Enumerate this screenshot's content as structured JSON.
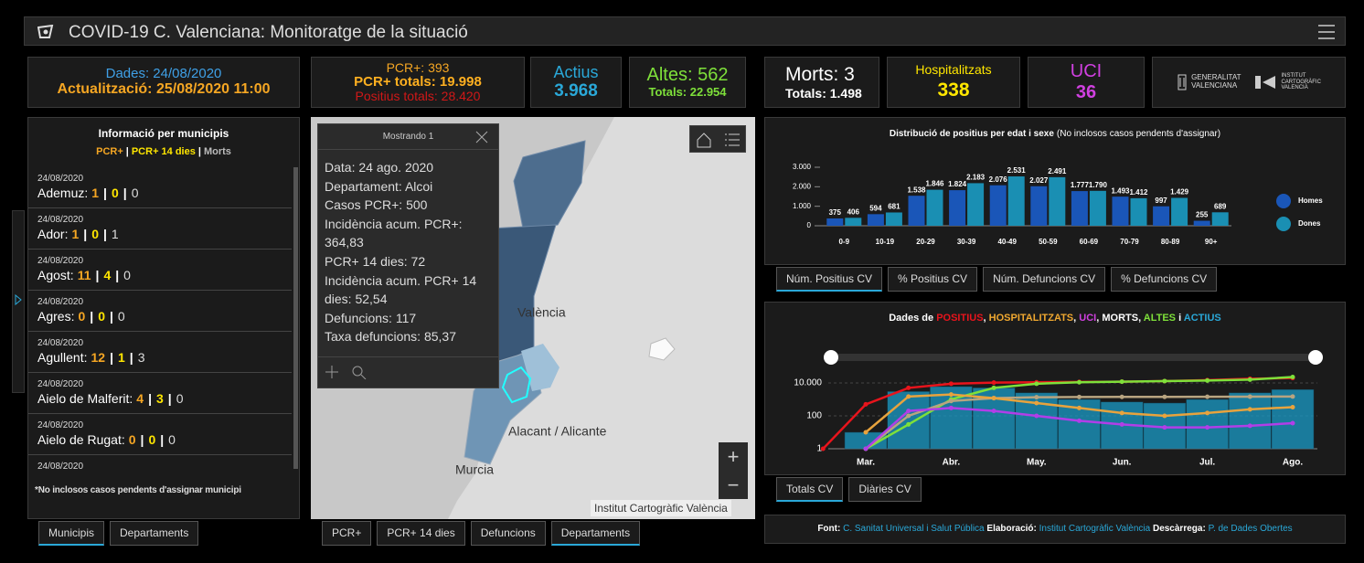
{
  "header": {
    "title": "COVID-19 C. Valenciana: Monitoratge de la situació"
  },
  "stats": {
    "dates": {
      "data": "Dades: 24/08/2020",
      "update": "Actualització: 25/08/2020 11:00"
    },
    "pcr": {
      "daily": "PCR+: 393",
      "total": "PCR+ totals: 19.998",
      "positives": "Positius totals: 28.420"
    },
    "active": {
      "label": "Actius",
      "value": "3.968"
    },
    "discharges": {
      "label": "Altes: 562",
      "total": "Totals: 22.954"
    },
    "deaths": {
      "label": "Morts: 3",
      "total": "Totals: 1.498"
    },
    "hospital": {
      "label": "Hospitalitzats",
      "value": "338"
    },
    "icu": {
      "label": "UCI",
      "value": "36"
    }
  },
  "logos": {
    "gva": [
      "GENERALITAT",
      "VALENCIANA"
    ],
    "icv": [
      "INSTITUT",
      "CARTOGRÀFIC",
      "VALENCIÀ"
    ]
  },
  "municipalities": {
    "title": "Informació per municipis",
    "legend": [
      "PCR+",
      "PCR+ 14 dies",
      "Morts"
    ],
    "separator": "|",
    "items": [
      {
        "date": "24/08/2020",
        "name": "Ademuz:",
        "pcr": 1,
        "pcr14": 0,
        "deaths": 0
      },
      {
        "date": "24/08/2020",
        "name": "Ador:",
        "pcr": 1,
        "pcr14": 0,
        "deaths": 1
      },
      {
        "date": "24/08/2020",
        "name": "Agost:",
        "pcr": 11,
        "pcr14": 4,
        "deaths": 0
      },
      {
        "date": "24/08/2020",
        "name": "Agres:",
        "pcr": 0,
        "pcr14": 0,
        "deaths": 0
      },
      {
        "date": "24/08/2020",
        "name": "Agullent:",
        "pcr": 12,
        "pcr14": 1,
        "deaths": 3
      },
      {
        "date": "24/08/2020",
        "name": "Aielo de Malferit:",
        "pcr": 4,
        "pcr14": 3,
        "deaths": 0
      },
      {
        "date": "24/08/2020",
        "name": "Aielo de Rugat:",
        "pcr": 0,
        "pcr14": 0,
        "deaths": 0
      }
    ],
    "last_date": "24/08/2020",
    "note": "*No inclosos casos pendents d'assignar municipi",
    "tabs": [
      "Municipis",
      "Departaments"
    ],
    "active_tab": 0
  },
  "map": {
    "popup_title": "Mostrando 1",
    "popup_lines": [
      "Data: 24 ago. 2020",
      "Departament: Alcoi",
      "Casos PCR+: 500",
      "Incidència acum. PCR+: 364,83",
      "PCR+ 14 dies: 72",
      "Incidència acum. PCR+ 14 dies: 52,54",
      "Defuncions: 117",
      "Taxa defuncions: 85,37"
    ],
    "labels": [
      "València",
      "Alacant / Alicante",
      "Murcia"
    ],
    "attribution": "Institut Cartogràfic València",
    "zoom": [
      "+",
      "−"
    ],
    "tabs": [
      "PCR+",
      "PCR+ 14 dies",
      "Defuncions",
      "Departaments"
    ],
    "active_tab": 3
  },
  "chart_data": [
    {
      "type": "bar",
      "title": "Distribució de positius per edat i sexe",
      "subtitle": "(No inclosos casos pendents d'assignar)",
      "categories": [
        "0-9",
        "10-19",
        "20-29",
        "30-39",
        "40-49",
        "50-59",
        "60-69",
        "70-79",
        "80-89",
        "90+"
      ],
      "series": [
        {
          "name": "Homes",
          "color": "#1a56b8",
          "values": [
            375,
            594,
            1538,
            1824,
            2076,
            2027,
            1777,
            1493,
            997,
            255
          ],
          "value_labels": [
            "375",
            "594",
            "1.538",
            "1.824",
            "2.076",
            "2.027",
            "1.777",
            "1.493",
            "997",
            "255"
          ]
        },
        {
          "name": "Dones",
          "color": "#1a8fb3",
          "values": [
            406,
            681,
            1846,
            2183,
            2531,
            2491,
            1790,
            1412,
            1429,
            689
          ],
          "value_labels": [
            "406",
            "681",
            "1.846",
            "2.183",
            "2.531",
            "2.491",
            "1.790",
            "1.412",
            "1.429",
            "689"
          ]
        }
      ],
      "ylim": [
        0,
        3000
      ],
      "yticks": [
        0,
        {
          "value": 1000,
          "label": "1.000"
        },
        {
          "value": 2000,
          "label": "2.000"
        },
        {
          "value": 3000,
          "label": "3.000"
        }
      ],
      "legend": "right",
      "tabs": [
        "Núm. Positius CV",
        "% Positius CV",
        "Núm. Defuncions CV",
        "% Defuncions CV"
      ],
      "active_tab": 0
    },
    {
      "type": "line",
      "title_parts": [
        "Dades de ",
        "POSITIUS",
        ", ",
        "HOSPITALITZATS",
        ", ",
        "UCI",
        ", MORTS, ",
        "ALTES",
        " i ",
        "ACTIUS"
      ],
      "title_colors": [
        "#ffffff",
        "#e8141c",
        "#ffffff",
        "#f0a830",
        "#ffffff",
        "#d040e0",
        "#ffffff",
        "#7ee03a",
        "#ffffff",
        "#2aa8d8"
      ],
      "categories": [
        null,
        "Mar.",
        null,
        "Abr.",
        null,
        "May.",
        null,
        "Jun.",
        null,
        "Jul.",
        null,
        "Ago."
      ],
      "series": [
        {
          "name": "ACTIUS",
          "style": "bar",
          "color": "#1a9bc7",
          "values": [
            null,
            10,
            3000,
            6000,
            5000,
            2500,
            1000,
            700,
            600,
            1000,
            2500,
            3968
          ]
        },
        {
          "name": "POSITIUS",
          "color": "#e8141c",
          "values": [
            1,
            500,
            5000,
            9000,
            10500,
            11000,
            11500,
            12000,
            13000,
            15000,
            18000,
            19998
          ]
        },
        {
          "name": "ALTES",
          "color": "#7ee03a",
          "values": [
            null,
            1,
            30,
            1000,
            5000,
            9000,
            11000,
            12000,
            13000,
            14000,
            16000,
            22954
          ]
        },
        {
          "name": "MORTS",
          "color": "#b8a480",
          "values": [
            null,
            1,
            100,
            800,
            1200,
            1350,
            1400,
            1420,
            1430,
            1440,
            1460,
            1498
          ]
        },
        {
          "name": "HOSPITALITZATS",
          "color": "#e8a33d",
          "values": [
            null,
            10,
            1500,
            2000,
            1200,
            600,
            300,
            150,
            100,
            150,
            250,
            338
          ]
        },
        {
          "name": "UCI",
          "color": "#b13ee8",
          "values": [
            null,
            1,
            200,
            300,
            200,
            100,
            50,
            30,
            20,
            20,
            25,
            36
          ]
        }
      ],
      "ylim": [
        1,
        100000
      ],
      "log": true,
      "yticks": [
        1,
        100,
        {
          "value": 10000,
          "label": "10.000"
        }
      ],
      "grid": true,
      "tabs": [
        "Totals CV",
        "Diàries CV"
      ],
      "active_tab": 0
    }
  ],
  "footer": {
    "parts": [
      "Font: ",
      "C. Sanitat Universal i Salut Pública",
      " Elaboració: ",
      "Institut Cartogràfic València",
      " Descàrrega: ",
      "P. de Dades Obertes"
    ],
    "colors": [
      "#ffffff",
      "#2aa8d8",
      "#ffffff",
      "#2aa8d8",
      "#ffffff",
      "#2aa8d8"
    ]
  }
}
